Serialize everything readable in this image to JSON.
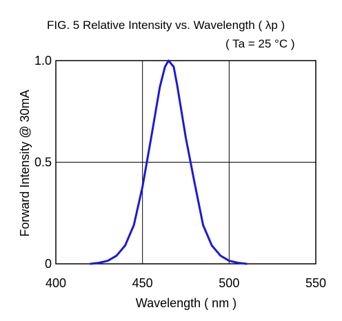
{
  "chart_data": {
    "type": "line",
    "title": "FIG. 5   Relative Intensity vs. Wavelength ( λp )",
    "subtitle": "( Ta = 25 °C )",
    "xlabel": "Wavelength ( nm )",
    "ylabel": "Forward Intensity @ 30mA",
    "xlim": [
      400,
      550
    ],
    "ylim": [
      0,
      1.0
    ],
    "x_ticks": [
      400,
      450,
      500,
      550
    ],
    "x_tick_labels": [
      "400",
      "450",
      "500",
      "550"
    ],
    "y_ticks": [
      0,
      0.5,
      1.0
    ],
    "y_tick_labels": [
      "0",
      "0.5",
      "1.0"
    ],
    "grid": true,
    "series_color": "#1a1ad6",
    "x": [
      420,
      425,
      430,
      435,
      440,
      445,
      450,
      455,
      460,
      463,
      465,
      468,
      470,
      475,
      480,
      485,
      490,
      495,
      500,
      505,
      510
    ],
    "y": [
      0.0,
      0.005,
      0.015,
      0.04,
      0.09,
      0.19,
      0.38,
      0.62,
      0.87,
      0.97,
      1.0,
      0.97,
      0.88,
      0.62,
      0.4,
      0.19,
      0.09,
      0.04,
      0.015,
      0.005,
      0.0
    ]
  }
}
